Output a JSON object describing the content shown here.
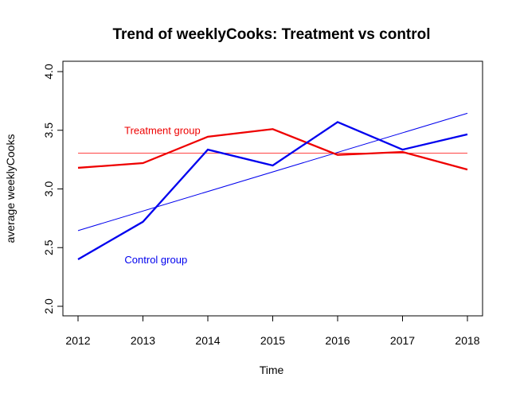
{
  "chart_data": {
    "type": "line",
    "title": "Trend of weeklyCooks: Treatment vs control",
    "xlabel": "Time",
    "ylabel": "average weeklyCooks",
    "x": [
      2012,
      2013,
      2014,
      2015,
      2016,
      2017,
      2018
    ],
    "xlim": [
      2012,
      2018
    ],
    "ylim": [
      2.0,
      4.0
    ],
    "yticks": [
      2.0,
      2.5,
      3.0,
      3.5,
      4.0
    ],
    "ytick_labels": [
      "2.0",
      "2.5",
      "3.0",
      "3.5",
      "4.0"
    ],
    "grid": false,
    "series": [
      {
        "values": [
          3.18,
          3.22,
          3.445,
          3.51,
          3.29,
          3.315,
          3.165
        ],
        "color": "#ee0000"
      },
      {
        "values": [
          2.4,
          2.72,
          3.335,
          3.2,
          3.57,
          3.335,
          3.465
        ],
        "color": "#0000ee"
      }
    ],
    "reference_lines": [
      {
        "kind": "horizontal",
        "y": 3.305,
        "color": "#ff4444"
      },
      {
        "kind": "segment",
        "x": [
          2012,
          2018
        ],
        "y": [
          2.645,
          3.645
        ],
        "color": "#0000ee"
      }
    ],
    "annotations": [
      {
        "text": "Treatment group",
        "x": 2013.3,
        "y": 3.49,
        "color": "#ee0000"
      },
      {
        "text": "Control group",
        "x": 2013.2,
        "y": 2.39,
        "color": "#0000ee"
      }
    ]
  }
}
